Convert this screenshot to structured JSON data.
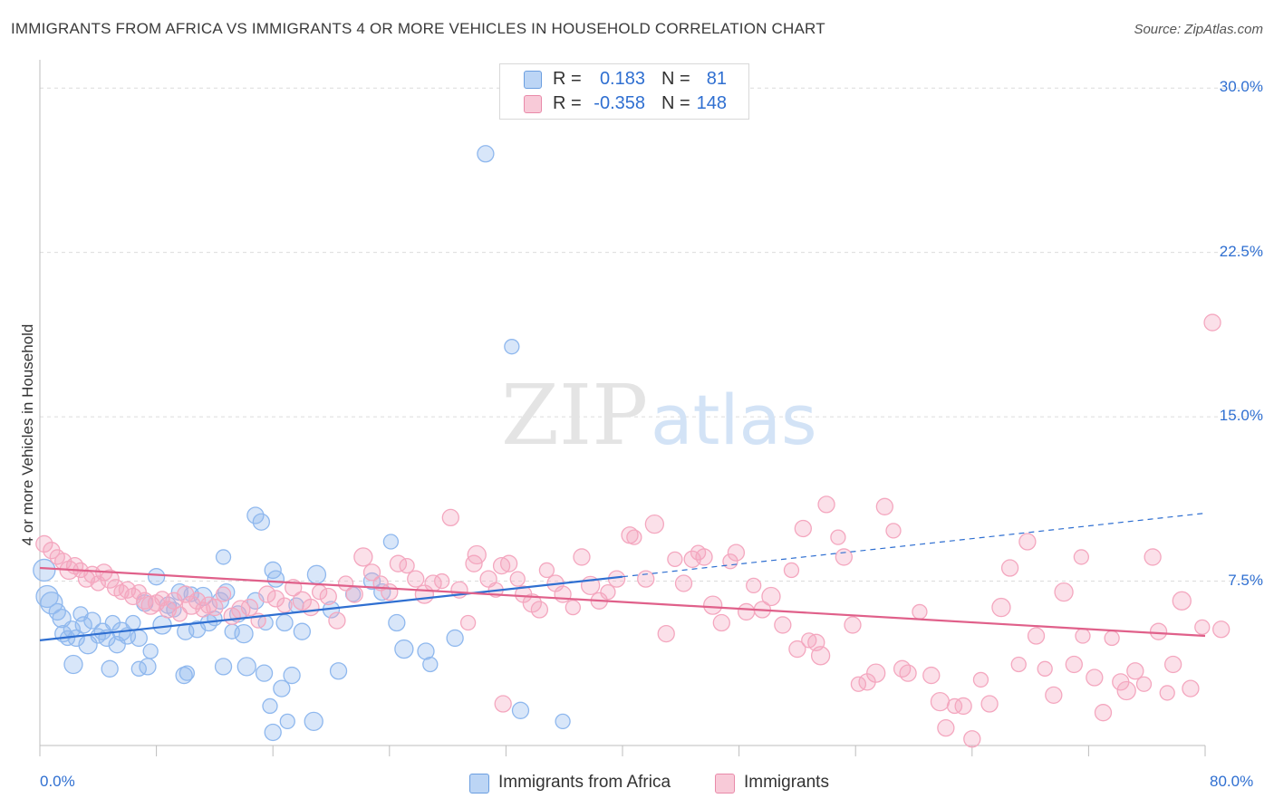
{
  "title": "IMMIGRANTS FROM AFRICA VS IMMIGRANTS 4 OR MORE VEHICLES IN HOUSEHOLD CORRELATION CHART",
  "source": "Source: ZipAtlas.com",
  "watermark": {
    "zip": "ZIP",
    "atlas": "atlas"
  },
  "legend": {
    "rows": [
      {
        "r_label": "R =",
        "r_value": "0.183",
        "n_label": "N =",
        "n_value": "81"
      },
      {
        "r_label": "R =",
        "r_value": "-0.358",
        "n_label": "N =",
        "n_value": "148"
      }
    ]
  },
  "chart_data": {
    "type": "scatter",
    "xlabel": "",
    "ylabel": "4 or more Vehicles in Household",
    "xlim": [
      0,
      80
    ],
    "ylim": [
      0,
      31
    ],
    "x_tick_labels": [
      "0.0%",
      "80.0%"
    ],
    "y_ticks": [
      7.5,
      15.0,
      22.5,
      30.0
    ],
    "y_tick_labels": [
      "7.5%",
      "15.0%",
      "22.5%",
      "30.0%"
    ],
    "grid": true,
    "legend_position": "bottom",
    "series": [
      {
        "name": "Immigrants from Africa",
        "color": "#8fb8ee",
        "trend_color": "#2f6fd1",
        "trend": {
          "x0": 0,
          "y0": 4.8,
          "x1": 80,
          "y1": 10.6,
          "solid_until": 40
        },
        "points": [
          [
            0.3,
            8.0
          ],
          [
            0.5,
            6.8
          ],
          [
            0.8,
            6.5
          ],
          [
            1.2,
            6.1
          ],
          [
            1.5,
            5.8
          ],
          [
            1.6,
            5.1
          ],
          [
            1.9,
            4.9
          ],
          [
            2.2,
            5.3
          ],
          [
            2.5,
            4.9
          ],
          [
            2.8,
            6.0
          ],
          [
            3.0,
            5.5
          ],
          [
            3.3,
            4.6
          ],
          [
            3.6,
            5.7
          ],
          [
            4.0,
            5.0
          ],
          [
            4.3,
            5.2
          ],
          [
            4.6,
            4.9
          ],
          [
            5.0,
            5.6
          ],
          [
            5.3,
            4.6
          ],
          [
            5.6,
            5.2
          ],
          [
            6.0,
            5.0
          ],
          [
            6.4,
            5.6
          ],
          [
            6.8,
            4.9
          ],
          [
            7.2,
            6.5
          ],
          [
            7.6,
            4.3
          ],
          [
            8.0,
            7.7
          ],
          [
            8.4,
            5.5
          ],
          [
            8.8,
            6.4
          ],
          [
            9.2,
            6.2
          ],
          [
            9.6,
            7.0
          ],
          [
            10.0,
            5.2
          ],
          [
            10.4,
            6.9
          ],
          [
            10.8,
            5.3
          ],
          [
            11.2,
            6.8
          ],
          [
            11.6,
            5.6
          ],
          [
            12.0,
            5.8
          ],
          [
            12.4,
            6.6
          ],
          [
            12.8,
            7.0
          ],
          [
            13.2,
            5.2
          ],
          [
            13.6,
            6.0
          ],
          [
            14.0,
            5.1
          ],
          [
            14.8,
            6.6
          ],
          [
            15.5,
            5.6
          ],
          [
            16.2,
            7.6
          ],
          [
            16.8,
            5.6
          ],
          [
            17.6,
            6.4
          ],
          [
            18.0,
            5.2
          ],
          [
            19.0,
            7.8
          ],
          [
            20.0,
            6.2
          ],
          [
            21.5,
            6.9
          ],
          [
            22.8,
            7.5
          ],
          [
            23.5,
            7.0
          ],
          [
            24.1,
            9.3
          ],
          [
            24.5,
            5.6
          ],
          [
            25.0,
            4.4
          ],
          [
            26.5,
            4.3
          ],
          [
            26.8,
            3.7
          ],
          [
            28.5,
            4.9
          ],
          [
            30.6,
            27.0
          ],
          [
            32.4,
            18.2
          ],
          [
            33.0,
            1.6
          ],
          [
            2.3,
            3.7
          ],
          [
            4.8,
            3.5
          ],
          [
            6.8,
            3.5
          ],
          [
            7.4,
            3.6
          ],
          [
            9.9,
            3.2
          ],
          [
            10.1,
            3.3
          ],
          [
            12.6,
            3.6
          ],
          [
            14.2,
            3.6
          ],
          [
            15.4,
            3.3
          ],
          [
            15.8,
            1.8
          ],
          [
            16.0,
            0.6
          ],
          [
            16.6,
            2.6
          ],
          [
            17.0,
            1.1
          ],
          [
            17.3,
            3.2
          ],
          [
            18.8,
            1.1
          ],
          [
            20.5,
            3.4
          ],
          [
            35.9,
            1.1
          ],
          [
            14.8,
            10.5
          ],
          [
            15.2,
            10.2
          ],
          [
            12.6,
            8.6
          ],
          [
            16.0,
            8.0
          ]
        ]
      },
      {
        "name": "Immigrants",
        "color": "#f4a7bf",
        "trend_color": "#e0608a",
        "trend": {
          "x0": 0,
          "y0": 8.1,
          "x1": 80,
          "y1": 5.0,
          "solid_until": 80
        },
        "points": [
          [
            0.3,
            9.2
          ],
          [
            0.8,
            8.9
          ],
          [
            1.2,
            8.6
          ],
          [
            1.6,
            8.4
          ],
          [
            2.0,
            8.0
          ],
          [
            2.4,
            8.2
          ],
          [
            2.8,
            8.0
          ],
          [
            3.2,
            7.6
          ],
          [
            3.6,
            7.8
          ],
          [
            4.0,
            7.4
          ],
          [
            4.4,
            7.9
          ],
          [
            4.8,
            7.6
          ],
          [
            5.2,
            7.2
          ],
          [
            5.6,
            7.0
          ],
          [
            6.0,
            7.1
          ],
          [
            6.4,
            6.8
          ],
          [
            6.8,
            7.0
          ],
          [
            7.2,
            6.6
          ],
          [
            7.6,
            6.4
          ],
          [
            8.0,
            6.5
          ],
          [
            8.4,
            6.7
          ],
          [
            8.8,
            6.2
          ],
          [
            9.2,
            6.6
          ],
          [
            9.6,
            6.0
          ],
          [
            10.0,
            6.9
          ],
          [
            10.4,
            6.4
          ],
          [
            10.8,
            6.6
          ],
          [
            11.2,
            6.2
          ],
          [
            11.6,
            6.4
          ],
          [
            12.0,
            6.3
          ],
          [
            12.6,
            6.9
          ],
          [
            13.2,
            5.9
          ],
          [
            13.8,
            6.2
          ],
          [
            14.4,
            6.3
          ],
          [
            15.0,
            5.7
          ],
          [
            15.6,
            6.9
          ],
          [
            16.2,
            6.7
          ],
          [
            16.8,
            6.4
          ],
          [
            17.4,
            7.2
          ],
          [
            18.0,
            6.6
          ],
          [
            18.6,
            6.3
          ],
          [
            19.2,
            7.0
          ],
          [
            19.8,
            6.8
          ],
          [
            20.4,
            5.7
          ],
          [
            21.0,
            7.4
          ],
          [
            21.6,
            6.9
          ],
          [
            22.2,
            8.6
          ],
          [
            22.8,
            7.9
          ],
          [
            23.4,
            7.4
          ],
          [
            24.0,
            7.0
          ],
          [
            24.6,
            8.3
          ],
          [
            25.2,
            8.2
          ],
          [
            25.8,
            7.6
          ],
          [
            26.4,
            6.9
          ],
          [
            27.0,
            7.4
          ],
          [
            27.6,
            7.5
          ],
          [
            28.2,
            10.4
          ],
          [
            28.8,
            7.1
          ],
          [
            29.4,
            5.6
          ],
          [
            29.8,
            8.3
          ],
          [
            30.0,
            8.7
          ],
          [
            30.8,
            7.6
          ],
          [
            31.3,
            7.1
          ],
          [
            31.7,
            8.2
          ],
          [
            32.2,
            8.3
          ],
          [
            32.8,
            7.6
          ],
          [
            33.2,
            6.9
          ],
          [
            33.8,
            6.5
          ],
          [
            34.3,
            6.2
          ],
          [
            34.8,
            8.0
          ],
          [
            35.4,
            7.4
          ],
          [
            35.9,
            6.9
          ],
          [
            36.6,
            6.3
          ],
          [
            37.2,
            8.6
          ],
          [
            37.8,
            7.3
          ],
          [
            38.4,
            6.6
          ],
          [
            39.0,
            7.0
          ],
          [
            39.6,
            7.6
          ],
          [
            40.5,
            9.6
          ],
          [
            40.8,
            9.5
          ],
          [
            41.6,
            7.6
          ],
          [
            42.2,
            10.1
          ],
          [
            43.0,
            5.1
          ],
          [
            43.6,
            8.5
          ],
          [
            44.2,
            7.4
          ],
          [
            44.8,
            8.5
          ],
          [
            45.2,
            8.8
          ],
          [
            45.6,
            8.6
          ],
          [
            46.2,
            6.4
          ],
          [
            46.8,
            5.6
          ],
          [
            47.4,
            8.4
          ],
          [
            47.8,
            8.8
          ],
          [
            48.5,
            6.1
          ],
          [
            49.0,
            7.3
          ],
          [
            49.6,
            6.2
          ],
          [
            50.2,
            6.8
          ],
          [
            51.0,
            5.5
          ],
          [
            51.6,
            8.0
          ],
          [
            52.0,
            4.4
          ],
          [
            52.4,
            9.9
          ],
          [
            52.8,
            4.8
          ],
          [
            53.3,
            4.7
          ],
          [
            53.6,
            4.1
          ],
          [
            54.0,
            11.0
          ],
          [
            54.8,
            9.5
          ],
          [
            55.2,
            8.6
          ],
          [
            55.8,
            5.5
          ],
          [
            56.2,
            2.8
          ],
          [
            56.8,
            2.9
          ],
          [
            57.4,
            3.3
          ],
          [
            58.0,
            10.9
          ],
          [
            58.6,
            9.8
          ],
          [
            59.2,
            3.5
          ],
          [
            59.6,
            3.3
          ],
          [
            60.4,
            6.1
          ],
          [
            61.2,
            3.2
          ],
          [
            61.8,
            2.0
          ],
          [
            62.2,
            0.8
          ],
          [
            62.8,
            1.8
          ],
          [
            63.4,
            1.8
          ],
          [
            64.0,
            0.3
          ],
          [
            64.6,
            3.0
          ],
          [
            65.2,
            1.9
          ],
          [
            66.0,
            6.3
          ],
          [
            66.6,
            8.1
          ],
          [
            67.2,
            3.7
          ],
          [
            67.8,
            9.3
          ],
          [
            68.4,
            5.0
          ],
          [
            69.0,
            3.5
          ],
          [
            69.6,
            2.3
          ],
          [
            70.3,
            7.0
          ],
          [
            71.0,
            3.7
          ],
          [
            71.6,
            5.0
          ],
          [
            72.4,
            3.1
          ],
          [
            73.0,
            1.5
          ],
          [
            73.6,
            4.9
          ],
          [
            74.2,
            2.9
          ],
          [
            74.6,
            2.5
          ],
          [
            75.2,
            3.4
          ],
          [
            75.8,
            2.8
          ],
          [
            76.4,
            8.6
          ],
          [
            76.8,
            5.2
          ],
          [
            77.4,
            2.4
          ],
          [
            77.8,
            3.7
          ],
          [
            78.4,
            6.6
          ],
          [
            79.0,
            2.6
          ],
          [
            79.8,
            5.4
          ],
          [
            81.1,
            5.3
          ],
          [
            80.5,
            19.3
          ],
          [
            71.5,
            8.6
          ],
          [
            31.8,
            1.9
          ]
        ]
      }
    ]
  }
}
